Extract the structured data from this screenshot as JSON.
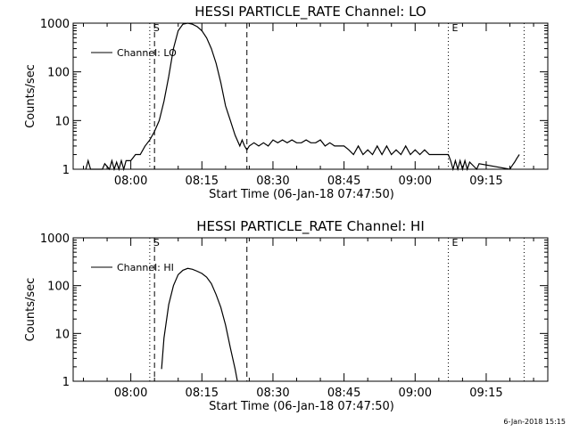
{
  "footer": {
    "stamp": "6-Jan-2018 15:15"
  },
  "chart_data": [
    {
      "type": "line",
      "title": "HESSI PARTICLE_RATE Channel: LO",
      "xlabel": "Start Time (06-Jan-18 07:47:50)",
      "ylabel": "Counts/sec",
      "yscale": "log",
      "ylim": [
        1,
        1000
      ],
      "yticks": [
        "1",
        "10",
        "100",
        "1000"
      ],
      "xticks": [
        "08:00",
        "08:15",
        "08:30",
        "08:45",
        "09:00",
        "09:15"
      ],
      "xlim": [
        "07:47:50",
        "09:28:00"
      ],
      "legend": {
        "position": "top-left",
        "label": "Channel: LO"
      },
      "markers": [
        {
          "label": "S",
          "time": "08:04:00",
          "style": "dotted"
        },
        {
          "label": "",
          "time": "08:05:00",
          "style": "dashed"
        },
        {
          "label": "",
          "time": "08:24:30",
          "style": "dashed"
        },
        {
          "label": "E",
          "time": "09:07:00",
          "style": "dotted"
        },
        {
          "label": "",
          "time": "09:23:00",
          "style": "dotted"
        }
      ],
      "series": [
        {
          "name": "Channel: LO",
          "x": [
            "07:50:30",
            "07:51:00",
            "07:51:30",
            "07:54:00",
            "07:54:30",
            "07:55:30",
            "07:56:00",
            "07:56:30",
            "07:57:00",
            "07:57:30",
            "07:58:00",
            "07:58:30",
            "07:59:00",
            "08:00:00",
            "08:01:00",
            "08:02:00",
            "08:03:00",
            "08:04:00",
            "08:05:00",
            "08:06:00",
            "08:07:00",
            "08:08:00",
            "08:09:00",
            "08:10:00",
            "08:11:00",
            "08:12:00",
            "08:13:00",
            "08:14:00",
            "08:15:00",
            "08:16:00",
            "08:17:00",
            "08:18:00",
            "08:19:00",
            "08:20:00",
            "08:21:00",
            "08:22:00",
            "08:23:00",
            "08:23:30",
            "08:24:00",
            "08:24:30",
            "08:25:00",
            "08:26:00",
            "08:27:00",
            "08:28:00",
            "08:29:00",
            "08:30:00",
            "08:31:00",
            "08:32:00",
            "08:33:00",
            "08:34:00",
            "08:35:00",
            "08:36:00",
            "08:37:00",
            "08:38:00",
            "08:39:00",
            "08:40:00",
            "08:41:00",
            "08:42:00",
            "08:43:00",
            "08:44:00",
            "08:45:00",
            "08:46:00",
            "08:47:00",
            "08:48:00",
            "08:49:00",
            "08:50:00",
            "08:51:00",
            "08:52:00",
            "08:53:00",
            "08:54:00",
            "08:55:00",
            "08:56:00",
            "08:57:00",
            "08:58:00",
            "08:59:00",
            "09:00:00",
            "09:01:00",
            "09:02:00",
            "09:03:00",
            "09:04:00",
            "09:05:00",
            "09:06:00",
            "09:07:00",
            "09:07:30",
            "09:08:00",
            "09:08:30",
            "09:09:00",
            "09:09:30",
            "09:10:00",
            "09:10:30",
            "09:11:00",
            "09:11:30",
            "09:13:00",
            "09:13:30",
            "09:20:00",
            "09:20:30",
            "09:21:00",
            "09:21:30",
            "09:22:00"
          ],
          "y": [
            1,
            1.5,
            1,
            1,
            1.3,
            1,
            1.5,
            1,
            1.4,
            1,
            1.5,
            1,
            1.5,
            1.5,
            2,
            2,
            3,
            4,
            6,
            10,
            25,
            80,
            300,
            700,
            950,
            1000,
            950,
            850,
            700,
            500,
            300,
            150,
            60,
            20,
            10,
            5,
            3,
            4,
            3,
            2.5,
            3,
            3.5,
            3,
            3.5,
            3,
            4,
            3.5,
            4,
            3.5,
            4,
            3.5,
            3.5,
            4,
            3.5,
            3.5,
            4,
            3,
            3.5,
            3,
            3,
            3,
            2.5,
            2,
            3,
            2,
            2.5,
            2,
            3,
            2,
            3,
            2,
            2.5,
            2,
            3,
            2,
            2.5,
            2,
            2.5,
            2,
            2,
            2,
            2,
            2,
            1.5,
            1,
            1.5,
            1,
            1.5,
            1,
            1.5,
            1,
            1.4,
            1,
            1.3,
            1,
            1.2,
            1.4,
            1.7,
            2
          ]
        }
      ]
    },
    {
      "type": "line",
      "title": "HESSI PARTICLE_RATE Channel: HI",
      "xlabel": "Start Time (06-Jan-18 07:47:50)",
      "ylabel": "Counts/sec",
      "yscale": "log",
      "ylim": [
        1,
        1000
      ],
      "yticks": [
        "1",
        "10",
        "100",
        "1000"
      ],
      "xticks": [
        "08:00",
        "08:15",
        "08:30",
        "08:45",
        "09:00",
        "09:15"
      ],
      "xlim": [
        "07:47:50",
        "09:28:00"
      ],
      "legend": {
        "position": "top-left",
        "label": "Channel: HI"
      },
      "markers": [
        {
          "label": "S",
          "time": "08:04:00",
          "style": "dotted"
        },
        {
          "label": "",
          "time": "08:05:00",
          "style": "dashed"
        },
        {
          "label": "",
          "time": "08:24:30",
          "style": "dashed"
        },
        {
          "label": "E",
          "time": "09:07:00",
          "style": "dotted"
        },
        {
          "label": "",
          "time": "09:23:00",
          "style": "dotted"
        }
      ],
      "series": [
        {
          "name": "Channel: HI",
          "x": [
            "08:06:30",
            "08:07:00",
            "08:08:00",
            "08:09:00",
            "08:10:00",
            "08:11:00",
            "08:12:00",
            "08:13:00",
            "08:14:00",
            "08:15:00",
            "08:16:00",
            "08:17:00",
            "08:18:00",
            "08:19:00",
            "08:20:00",
            "08:21:00",
            "08:22:00",
            "08:22:30"
          ],
          "y": [
            1.8,
            8,
            40,
            100,
            170,
            210,
            230,
            220,
            200,
            180,
            150,
            110,
            65,
            35,
            15,
            5,
            1.8,
            1
          ]
        }
      ]
    }
  ]
}
